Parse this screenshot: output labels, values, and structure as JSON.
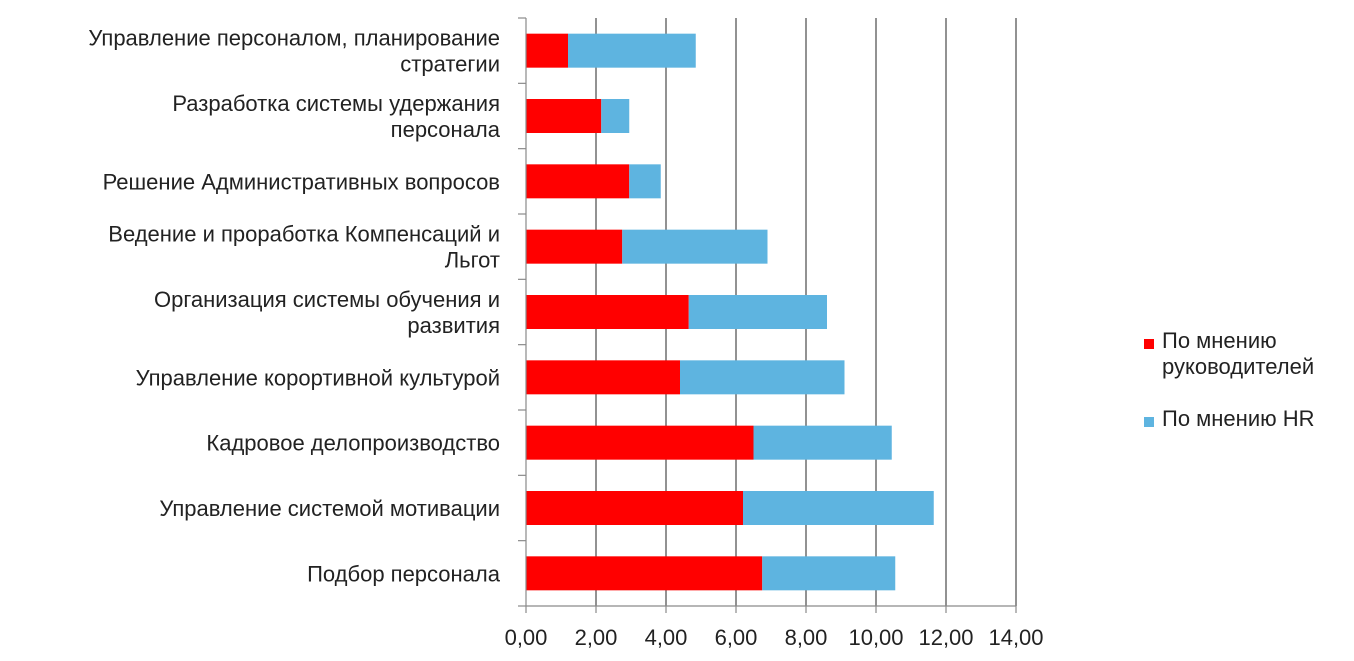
{
  "chart_data": {
    "type": "bar",
    "orientation": "horizontal",
    "stacked": true,
    "categories": [
      [
        "Управление персоналом, планирование",
        "стратегии"
      ],
      [
        "Разработка системы удержания",
        "персонала"
      ],
      [
        "Решение Административных вопросов"
      ],
      [
        "Ведение и проработка Компенсаций и",
        "Льгот"
      ],
      [
        "Организация системы обучения и",
        "развития"
      ],
      [
        "Управление корортивной культурой"
      ],
      [
        "Кадровое делопроизводство"
      ],
      [
        "Управление системой мотивации"
      ],
      [
        "Подбор персонала"
      ]
    ],
    "series": [
      {
        "name": [
          "По мнению",
          "руководителей"
        ],
        "color": "#ff0000",
        "values": [
          1.2,
          2.15,
          2.95,
          2.75,
          4.65,
          4.4,
          6.5,
          6.2,
          6.75
        ]
      },
      {
        "name": [
          "По мнению HR"
        ],
        "color": "#5eb4e0",
        "values": [
          3.65,
          0.8,
          0.9,
          4.15,
          3.95,
          4.7,
          3.95,
          5.45,
          3.8
        ]
      }
    ],
    "xlim": [
      0,
      14
    ],
    "xticks": [
      "0,00",
      "2,00",
      "4,00",
      "6,00",
      "8,00",
      "10,00",
      "12,00",
      "14,00"
    ],
    "xtick_values": [
      0,
      2,
      4,
      6,
      8,
      10,
      12,
      14
    ],
    "grid": true,
    "legend": "right"
  }
}
